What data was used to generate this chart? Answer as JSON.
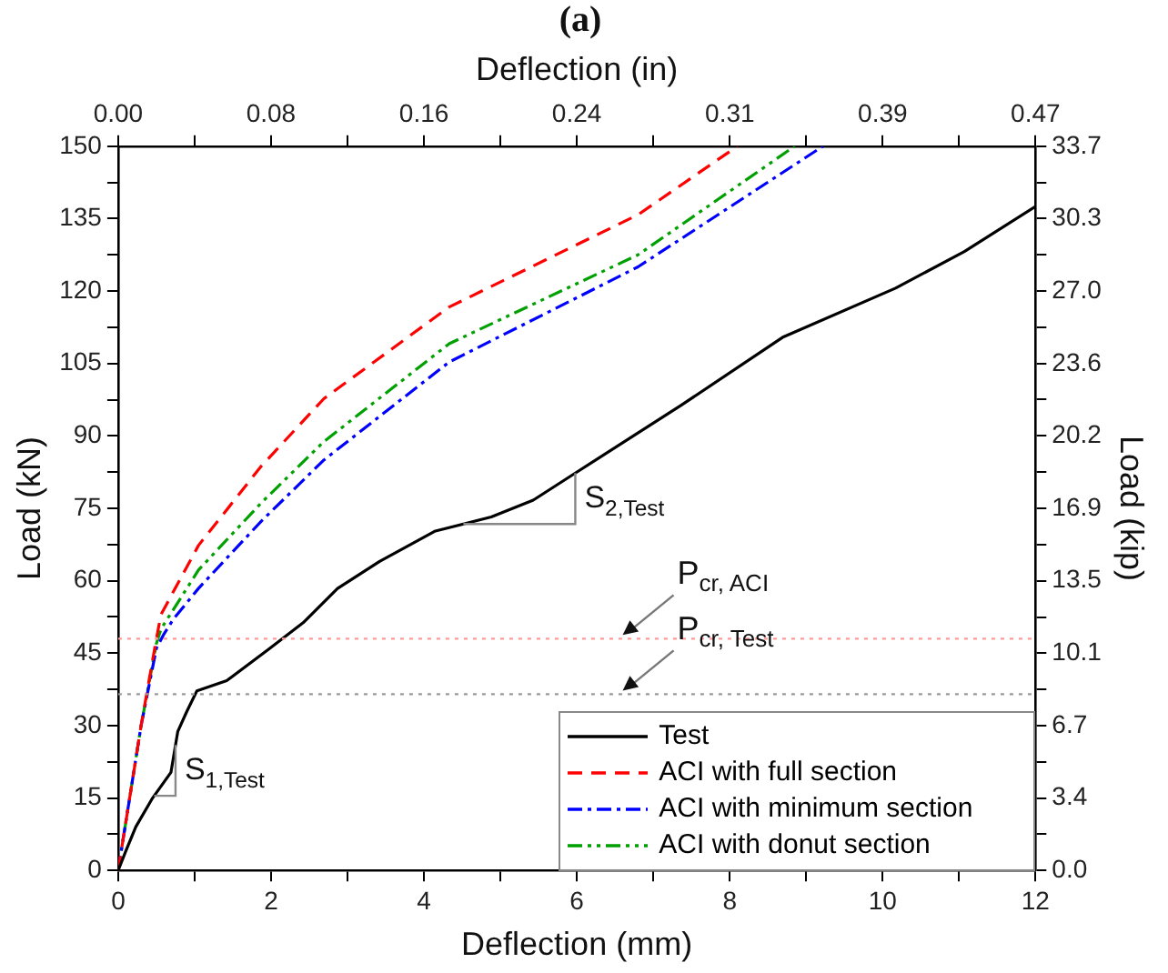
{
  "chart_data": {
    "type": "line",
    "title": "(a)",
    "xlabel": "Deflection (mm)",
    "ylabel": "Load (kN)",
    "x2label": "Deflection (in)",
    "y2label": "Load (kip)",
    "xlim": [
      0,
      12
    ],
    "xticks": [
      0,
      {
        "value": 1,
        "label": null
      },
      2,
      {
        "value": 3,
        "label": null
      },
      4,
      {
        "value": 5,
        "label": null
      },
      6,
      {
        "value": 7,
        "label": null
      },
      8,
      {
        "value": 9,
        "label": null
      },
      10,
      {
        "value": 11,
        "label": null
      },
      12
    ],
    "ylim": [
      0,
      150
    ],
    "yticks": [
      0,
      {
        "value": 7.5,
        "label": null
      },
      15,
      {
        "value": 22.5,
        "label": null
      },
      30,
      {
        "value": 37.5,
        "label": null
      },
      45,
      {
        "value": 52.5,
        "label": null
      },
      60,
      {
        "value": 67.5,
        "label": null
      },
      75,
      {
        "value": 82.5,
        "label": null
      },
      90,
      {
        "value": 97.5,
        "label": null
      },
      105,
      {
        "value": 112.5,
        "label": null
      },
      120,
      {
        "value": 127.5,
        "label": null
      },
      135,
      {
        "value": 142.5,
        "label": null
      },
      150
    ],
    "x2lim": [
      0,
      0.4724
    ],
    "x2ticks": [
      {
        "value": 0,
        "label": "0.00"
      },
      {
        "value": 0.0394,
        "label": null
      },
      {
        "value": 0.0787,
        "label": "0.08"
      },
      {
        "value": 0.1181,
        "label": null
      },
      {
        "value": 0.1575,
        "label": "0.16"
      },
      {
        "value": 0.1969,
        "label": null
      },
      {
        "value": 0.2362,
        "label": "0.24"
      },
      {
        "value": 0.2756,
        "label": null
      },
      {
        "value": 0.315,
        "label": "0.31"
      },
      {
        "value": 0.3543,
        "label": null
      },
      {
        "value": 0.3937,
        "label": "0.39"
      },
      {
        "value": 0.4331,
        "label": null
      },
      {
        "value": 0.4724,
        "label": "0.47"
      }
    ],
    "y2lim": [
      0,
      33.72
    ],
    "y2ticks": [
      {
        "value": 0,
        "label": "0.0"
      },
      {
        "value": 1.69,
        "label": null
      },
      {
        "value": 3.37,
        "label": "3.4"
      },
      {
        "value": 5.06,
        "label": null
      },
      {
        "value": 6.74,
        "label": "6.7"
      },
      {
        "value": 8.43,
        "label": null
      },
      {
        "value": 10.12,
        "label": "10.1"
      },
      {
        "value": 11.8,
        "label": null
      },
      {
        "value": 13.49,
        "label": "13.5"
      },
      {
        "value": 15.17,
        "label": null
      },
      {
        "value": 16.86,
        "label": "16.9"
      },
      {
        "value": 18.55,
        "label": null
      },
      {
        "value": 20.23,
        "label": "20.2"
      },
      {
        "value": 21.92,
        "label": null
      },
      {
        "value": 23.6,
        "label": "23.6"
      },
      {
        "value": 25.29,
        "label": null
      },
      {
        "value": 26.98,
        "label": "27.0"
      },
      {
        "value": 28.66,
        "label": null
      },
      {
        "value": 30.35,
        "label": "30.3"
      },
      {
        "value": 32.03,
        "label": null
      },
      {
        "value": 33.72,
        "label": "33.7"
      }
    ],
    "grid": false,
    "legend": "bottom right",
    "marker": "none",
    "series": [
      {
        "name": "Test",
        "color": "#000000",
        "line_style": "solid",
        "x": [
          0,
          0.1,
          0.23,
          0.45,
          0.69,
          0.78,
          0.9,
          1.03,
          1.42,
          1.96,
          2.42,
          2.87,
          3.42,
          4.15,
          4.88,
          5.43,
          5.98,
          7.37,
          8.69,
          10.17,
          11.07,
          12
        ],
        "values": [
          0,
          4,
          9,
          15,
          20.3,
          28.8,
          33,
          37.2,
          39.3,
          45.7,
          51.3,
          58.4,
          64,
          70.3,
          73.2,
          76.7,
          82.3,
          96.4,
          110.4,
          120.6,
          128.2,
          137.5
        ]
      },
      {
        "name": "ACI with full section",
        "color": "#ff0000",
        "line_style": "dashed",
        "x": [
          0,
          0.3,
          0.5,
          0.56,
          1.05,
          1.87,
          2.69,
          4.33,
          6.8,
          8.1
        ],
        "values": [
          0,
          30,
          48,
          53,
          67.3,
          83.7,
          97.7,
          116.7,
          135.8,
          150
        ]
      },
      {
        "name": "ACI with minimum section",
        "color": "#0000ff",
        "line_style": "dashdot",
        "x": [
          0,
          0.3,
          0.5,
          0.6,
          0.72,
          1.05,
          1.87,
          2.69,
          4.33,
          6.8,
          9.22
        ],
        "values": [
          0,
          30,
          46,
          49,
          52,
          58.4,
          72.3,
          85,
          105.3,
          125,
          150
        ]
      },
      {
        "name": "ACI with donut section",
        "color": "#00a000",
        "line_style": "dashdotdot",
        "x": [
          0,
          0.3,
          0.5,
          0.56,
          0.64,
          1.05,
          1.87,
          2.69,
          4.33,
          6.8,
          8.85
        ],
        "values": [
          0,
          30,
          47,
          50,
          52,
          62.2,
          76.1,
          88.8,
          109.1,
          127.5,
          150
        ]
      }
    ],
    "ref_lines": [
      {
        "axis": "y",
        "value": 48,
        "label": "P$_{cr, ACI}$",
        "color": "#ff9999",
        "line_style": "dotted"
      },
      {
        "axis": "y",
        "value": 36.5,
        "label": "P$_{cr, Test}$",
        "color": "#999999",
        "line_style": "dotted"
      }
    ],
    "annotations": [
      {
        "text": "S$_{1,Test}$",
        "x": 0.75,
        "y": 26
      },
      {
        "text": "S$_{2,Test}$",
        "x": 5.98,
        "y": 82.3
      }
    ]
  }
}
